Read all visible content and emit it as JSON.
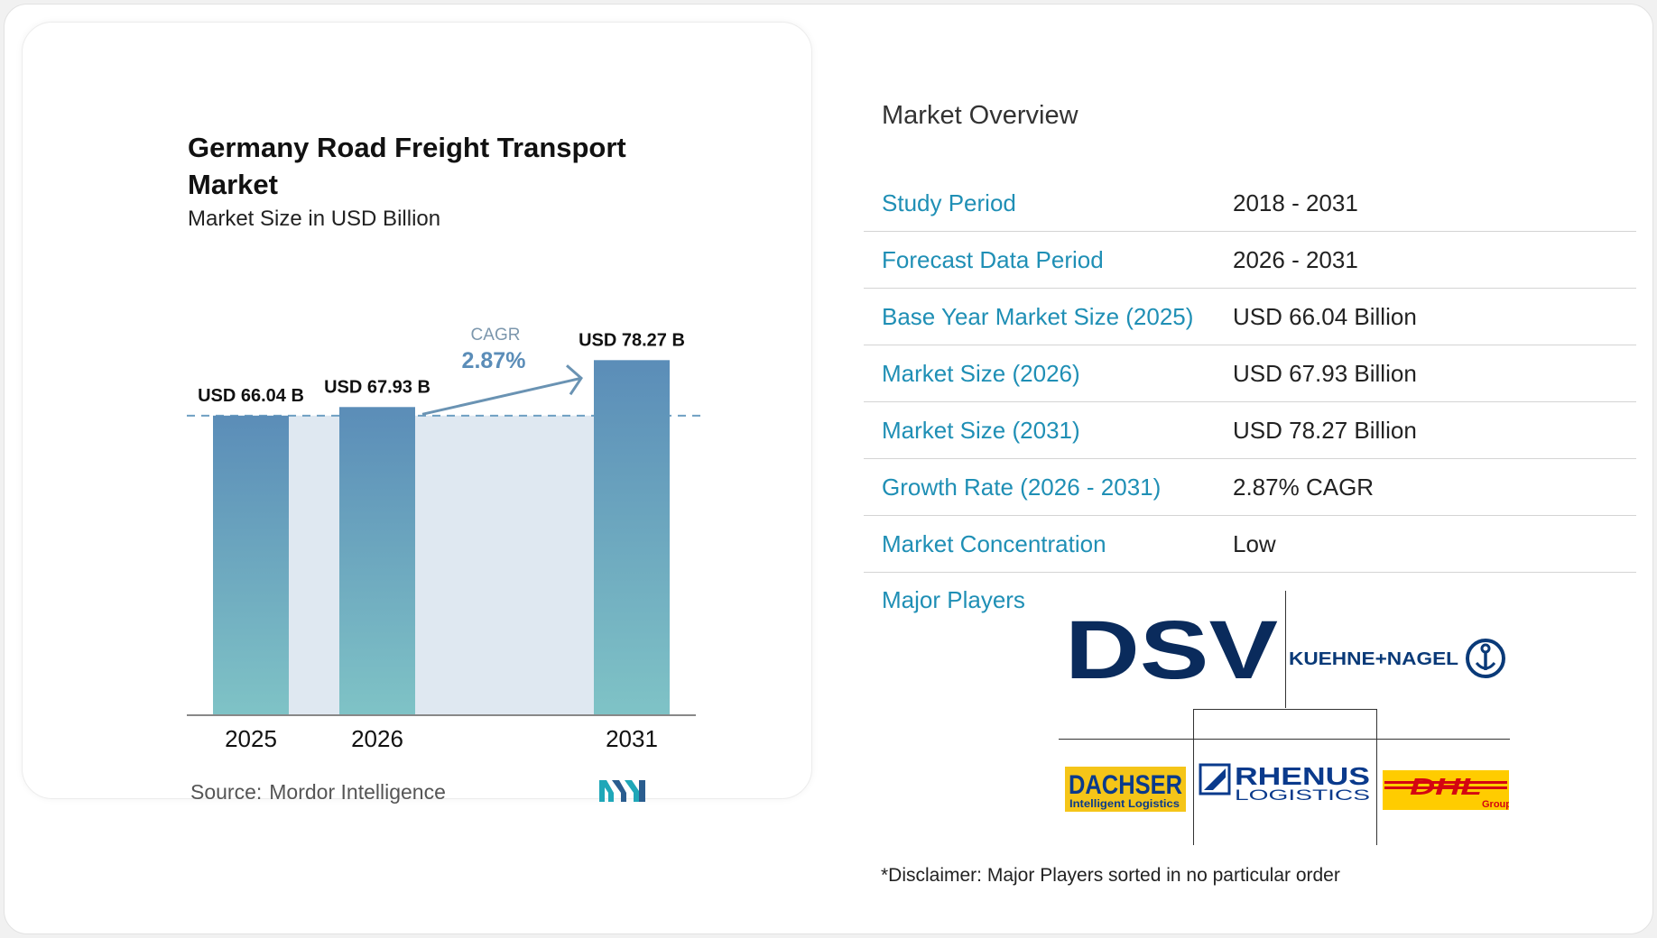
{
  "chart_data": {
    "type": "bar",
    "title": "Germany Road Freight Transport Market",
    "subtitle": "Market Size in USD Billion",
    "categories": [
      "2025",
      "2026",
      "2031"
    ],
    "values": [
      66.04,
      67.93,
      78.27
    ],
    "value_labels": [
      "USD 66.04 B",
      "USD 67.93 B",
      "USD 78.27 B"
    ],
    "cagr_label": "CAGR",
    "cagr_value": "2.87%",
    "baseline_value": 66.04,
    "ylim": [
      0,
      80
    ],
    "colors": {
      "bar_top": "#5b8db8",
      "bar_bottom": "#7fc3c6",
      "band": "#dfe8f1",
      "arrow": "#6a93b3",
      "cagr": "#5b8db8"
    }
  },
  "source": {
    "label": "Source:",
    "value": "Mordor Intelligence"
  },
  "overview": {
    "title": "Market Overview",
    "rows": [
      {
        "label": "Study Period",
        "value": "2018 - 2031"
      },
      {
        "label": "Forecast Data Period",
        "value": "2026 - 2031"
      },
      {
        "label": "Base Year Market Size (2025)",
        "value": "USD 66.04 Billion"
      },
      {
        "label": "Market Size (2026)",
        "value": "USD 67.93 Billion"
      },
      {
        "label": "Market Size (2031)",
        "value": "USD 78.27 Billion"
      },
      {
        "label": "Growth Rate (2026 - 2031)",
        "value": "2.87% CAGR"
      },
      {
        "label": "Market Concentration",
        "value": "Low"
      }
    ]
  },
  "players": {
    "label": "Major Players",
    "logos": [
      {
        "name": "DSV",
        "text": "DSV",
        "color": "#0a2b5c"
      },
      {
        "name": "Kuehne+Nagel",
        "text": "KUEHNE+NAGEL",
        "color": "#0a3a78"
      },
      {
        "name": "Dachser",
        "text": "DACHSER",
        "sub": "Intelligent Logistics",
        "color": "#0a3a8c",
        "bg": "#f5c518"
      },
      {
        "name": "Rhenus Logistics",
        "text": "RHENUS",
        "sub": "LOGISTICS",
        "color": "#0a3a8c"
      },
      {
        "name": "DHL Group",
        "text": "DHL",
        "sub": "Group",
        "color": "#d40511",
        "bg": "#ffcc00"
      }
    ]
  },
  "disclaimer": "*Disclaimer: Major Players sorted in no particular order"
}
